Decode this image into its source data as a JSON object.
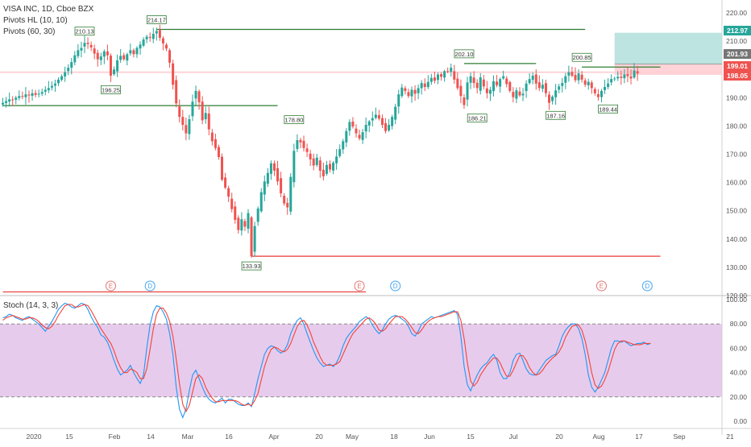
{
  "header": {
    "symbol_line": "VISA INC, 1D, Cboe BZX",
    "study1": "Pivots HL (10, 10)",
    "study2": "Pivots (60, 30)",
    "stoch_label": "Stoch (14, 3, 3)"
  },
  "colors": {
    "up": "#26a69a",
    "down": "#ef5350",
    "pivot_high": "#2e7d32",
    "pivot_low": "#e53935",
    "stoch_k": "#2196f3",
    "stoch_d": "#f44336",
    "stoch_band": "#e1bee7",
    "target_zone": "#b2dfdb",
    "stop_zone": "#ffcdd2",
    "earnings_marker": "#e57373",
    "dividend_marker": "#42a5f5"
  },
  "chart_data": [
    {
      "type": "candlestick",
      "title": "",
      "ylim": [
        114,
        224
      ],
      "y_ticks": [
        120,
        130,
        140,
        150,
        160,
        170,
        180,
        190,
        200,
        210,
        220
      ],
      "x_ticks": [
        "2020",
        "15",
        "Feb",
        "14",
        "Mar",
        "16",
        "Apr",
        "20",
        "May",
        "18",
        "Jun",
        "15",
        "Jul",
        "20",
        "Aug",
        "17",
        "Sep",
        "21"
      ],
      "price_badges": [
        {
          "label": "212.97",
          "value": 212.97,
          "color": "#26a69a"
        },
        {
          "label": "201.93",
          "value": 201.93,
          "color": "#757575"
        },
        {
          "label": "199.01",
          "value": 199.01,
          "color": "#ef5350"
        },
        {
          "label": "198.05",
          "value": 198.05,
          "color": "#ef5350"
        }
      ],
      "pivot_labels": [
        {
          "text": "210.13",
          "value": 210.13,
          "type": "high",
          "bar": 25
        },
        {
          "text": "196.25",
          "value": 196.25,
          "type": "low",
          "bar": 33
        },
        {
          "text": "214.17",
          "value": 214.17,
          "type": "high",
          "bar": 47
        },
        {
          "text": "133.93",
          "value": 133.93,
          "type": "low",
          "bar": 76
        },
        {
          "text": "178.80",
          "value": 178.8,
          "type": "high",
          "bar": 89
        },
        {
          "text": "202.10",
          "value": 202.1,
          "type": "high",
          "bar": 141
        },
        {
          "text": "186.21",
          "value": 186.21,
          "type": "low",
          "bar": 145
        },
        {
          "text": "187.16",
          "value": 187.16,
          "type": "low",
          "bar": 169
        },
        {
          "text": "200.85",
          "value": 200.85,
          "type": "high",
          "bar": 177
        },
        {
          "text": "189.44",
          "value": 189.44,
          "type": "low",
          "bar": 185
        }
      ],
      "pivot_lines": [
        {
          "value": 214.17,
          "from_bar": 47,
          "to_bar": 178,
          "type": "high"
        },
        {
          "value": 202.1,
          "from_bar": 141,
          "to_bar": 163,
          "type": "high"
        },
        {
          "value": 200.85,
          "from_bar": 177,
          "to_bar": 201,
          "type": "high"
        },
        {
          "value": 187.2,
          "from_bar": 0,
          "to_bar": 84,
          "type": "high"
        },
        {
          "value": 133.93,
          "from_bar": 76,
          "to_bar": 201,
          "type": "low"
        },
        {
          "value": 121.3,
          "from_bar": 0,
          "to_bar": 111,
          "type": "low"
        }
      ],
      "position_box": {
        "from_bar": 187,
        "to_bar": 233,
        "entry": 199.01,
        "target": 212.97,
        "stop": 198.05,
        "mid": 201.93
      },
      "event_markers": [
        {
          "label": "E",
          "bar": 33,
          "kind": "earnings"
        },
        {
          "label": "D",
          "bar": 45,
          "kind": "dividend"
        },
        {
          "label": "E",
          "bar": 109,
          "kind": "earnings"
        },
        {
          "label": "D",
          "bar": 120,
          "kind": "dividend"
        },
        {
          "label": "E",
          "bar": 183,
          "kind": "earnings"
        },
        {
          "label": "D",
          "bar": 197,
          "kind": "dividend"
        }
      ],
      "closes": [
        188.2,
        188.8,
        189.4,
        189.2,
        190.0,
        190.6,
        190.4,
        191.2,
        190.8,
        191.6,
        191.0,
        191.4,
        192.0,
        192.8,
        193.4,
        194.2,
        195.0,
        196.4,
        197.6,
        199.0,
        200.6,
        202.6,
        205.0,
        206.8,
        207.6,
        209.4,
        209.0,
        207.8,
        205.6,
        203.6,
        204.6,
        206.4,
        205.0,
        197.8,
        200.0,
        203.2,
        204.8,
        203.6,
        205.4,
        206.8,
        205.4,
        207.6,
        208.8,
        210.6,
        211.6,
        211.2,
        212.6,
        213.6,
        211.2,
        209.2,
        207.4,
        202.4,
        194.6,
        188.0,
        183.2,
        180.4,
        177.4,
        182.4,
        188.6,
        192.4,
        188.4,
        182.0,
        184.6,
        178.8,
        174.6,
        172.2,
        169.0,
        161.0,
        158.2,
        155.0,
        150.6,
        146.8,
        143.2,
        147.0,
        144.4,
        149.2,
        134.0,
        144.6,
        150.8,
        156.6,
        160.4,
        163.4,
        166.8,
        164.2,
        160.4,
        156.2,
        152.6,
        151.2,
        162.0,
        171.2,
        175.0,
        174.2,
        172.2,
        170.8,
        168.2,
        166.0,
        168.8,
        164.2,
        162.2,
        166.2,
        164.6,
        167.0,
        169.2,
        171.8,
        174.6,
        178.2,
        181.4,
        179.8,
        177.4,
        175.6,
        177.8,
        180.4,
        181.6,
        182.8,
        184.0,
        182.6,
        180.4,
        178.2,
        180.4,
        183.2,
        186.8,
        191.2,
        193.6,
        192.4,
        190.6,
        192.8,
        191.4,
        193.4,
        195.2,
        193.8,
        195.6,
        197.0,
        196.0,
        198.2,
        197.4,
        199.4,
        199.2,
        200.6,
        196.4,
        193.4,
        190.6,
        187.4,
        195.4,
        197.6,
        195.2,
        193.4,
        197.2,
        194.0,
        191.6,
        192.8,
        195.8,
        194.4,
        196.6,
        197.6,
        194.8,
        192.4,
        190.2,
        192.6,
        190.8,
        191.4,
        195.0,
        196.6,
        197.8,
        195.0,
        193.4,
        194.6,
        191.6,
        188.2,
        190.4,
        192.6,
        194.0,
        195.2,
        197.6,
        199.0,
        197.8,
        196.2,
        198.6,
        196.4,
        194.6,
        195.6,
        193.4,
        191.6,
        190.2,
        192.4,
        193.8,
        195.0,
        196.6,
        196.8,
        197.4,
        197.0,
        198.2,
        197.6,
        196.8,
        199.6,
        198.6
      ],
      "stochastic": {
        "name": "Stoch",
        "params": [
          14,
          3,
          3
        ],
        "ylim": [
          -5,
          105
        ],
        "y_ticks": [
          0,
          20,
          40,
          60,
          80,
          100
        ],
        "band": [
          20,
          80
        ],
        "k": [
          85.0,
          86.0,
          88.0,
          87.0,
          85.0,
          84.0,
          83.0,
          85.0,
          86.0,
          84.0,
          82.0,
          80.0,
          77.0,
          74.0,
          78.0,
          82.0,
          87.0,
          92.0,
          95.0,
          97.0,
          96.0,
          94.0,
          93.0,
          95.0,
          97.0,
          96.0,
          92.0,
          86.0,
          81.0,
          77.0,
          71.0,
          69.0,
          65.0,
          58.0,
          50.0,
          43.0,
          38.0,
          40.0,
          42.0,
          46.0,
          40.0,
          35.0,
          31.0,
          38.0,
          60.0,
          79.0,
          90.0,
          95.0,
          94.0,
          90.0,
          84.0,
          72.0,
          55.0,
          28.0,
          10.0,
          3.0,
          10.0,
          25.0,
          38.0,
          42.0,
          35.0,
          28.0,
          22.0,
          18.0,
          16.0,
          15.0,
          17.0,
          19.0,
          15.0,
          18.0,
          18.0,
          16.0,
          14.0,
          13.0,
          13.0,
          15.0,
          12.0,
          23.0,
          35.0,
          45.0,
          55.0,
          60.0,
          62.0,
          61.0,
          58.0,
          56.0,
          58.0,
          63.0,
          72.0,
          78.0,
          83.0,
          85.0,
          80.0,
          72.0,
          65.0,
          58.0,
          52.0,
          48.0,
          45.0,
          46.0,
          47.0,
          45.0,
          48.0,
          54.0,
          62.0,
          68.0,
          72.0,
          75.0,
          78.0,
          82.0,
          84.0,
          86.0,
          84.0,
          79.0,
          75.0,
          72.0,
          75.0,
          80.0,
          84.0,
          86.0,
          87.0,
          86.0,
          84.0,
          82.0,
          78.0,
          72.0,
          70.0,
          74.0,
          80.0,
          82.0,
          84.0,
          86.0,
          85.0,
          86.0,
          87.0,
          88.0,
          89.0,
          90.0,
          91.0,
          88.0,
          70.0,
          45.0,
          30.0,
          25.0,
          32.0,
          38.0,
          43.0,
          46.0,
          48.0,
          52.0,
          55.0,
          50.0,
          40.0,
          35.0,
          35.0,
          40.0,
          50.0,
          55.0,
          56.0,
          50.0,
          43.0,
          39.0,
          38.0,
          38.0,
          42.0,
          46.0,
          50.0,
          52.0,
          54.0,
          55.0,
          62.0,
          70.0,
          75.0,
          78.0,
          80.0,
          80.0,
          76.0,
          68.0,
          55.0,
          38.0,
          28.0,
          24.0,
          28.0,
          34.0,
          40.0,
          50.0,
          60.0,
          66.0,
          66.0,
          65.0,
          66.0,
          64.0,
          62.0,
          63.0,
          64.0,
          64.0,
          65.0,
          63.0,
          64.0
        ],
        "d": [
          83.0,
          85.0,
          86.0,
          87.0,
          86.0,
          85.0,
          84.0,
          84.0,
          85.0,
          85.0,
          84.0,
          82.0,
          79.0,
          77.0,
          76.0,
          78.0,
          82.0,
          87.0,
          91.0,
          95.0,
          96.0,
          96.0,
          94.0,
          94.0,
          95.0,
          96.0,
          95.0,
          91.0,
          86.0,
          81.0,
          76.0,
          72.0,
          68.0,
          64.0,
          58.0,
          50.0,
          44.0,
          40.0,
          40.0,
          43.0,
          42.0,
          40.0,
          35.0,
          35.0,
          43.0,
          59.0,
          76.0,
          88.0,
          93.0,
          93.0,
          89.0,
          82.0,
          70.0,
          51.0,
          31.0,
          14.0,
          8.0,
          13.0,
          24.0,
          35.0,
          38.0,
          35.0,
          28.0,
          23.0,
          19.0,
          16.0,
          16.0,
          17.0,
          17.0,
          17.0,
          17.0,
          17.0,
          16.0,
          14.0,
          13.0,
          14.0,
          13.0,
          17.0,
          23.0,
          34.0,
          45.0,
          53.0,
          59.0,
          61.0,
          60.0,
          58.0,
          57.0,
          59.0,
          64.0,
          71.0,
          78.0,
          82.0,
          83.0,
          79.0,
          73.0,
          65.0,
          59.0,
          53.0,
          48.0,
          46.0,
          46.0,
          46.0,
          47.0,
          49.0,
          55.0,
          61.0,
          67.0,
          72.0,
          75.0,
          78.0,
          81.0,
          84.0,
          85.0,
          83.0,
          80.0,
          75.0,
          74.0,
          76.0,
          80.0,
          83.0,
          86.0,
          86.0,
          86.0,
          84.0,
          81.0,
          77.0,
          73.0,
          72.0,
          75.0,
          79.0,
          82.0,
          84.0,
          85.0,
          86.0,
          86.0,
          87.0,
          88.0,
          89.0,
          90.0,
          90.0,
          83.0,
          68.0,
          48.0,
          33.0,
          29.0,
          32.0,
          38.0,
          42.0,
          46.0,
          49.0,
          52.0,
          52.0,
          48.0,
          42.0,
          37.0,
          37.0,
          42.0,
          48.0,
          54.0,
          54.0,
          50.0,
          44.0,
          40.0,
          38.0,
          39.0,
          42.0,
          46.0,
          49.0,
          52.0,
          54.0,
          57.0,
          62.0,
          69.0,
          74.0,
          78.0,
          79.0,
          79.0,
          75.0,
          66.0,
          54.0,
          40.0,
          30.0,
          27.0,
          29.0,
          34.0,
          41.0,
          50.0,
          59.0,
          64.0,
          66.0,
          66.0,
          65.0,
          64.0,
          63.0,
          63.0,
          63.0,
          64.0,
          64.0,
          64.0
        ]
      }
    }
  ]
}
